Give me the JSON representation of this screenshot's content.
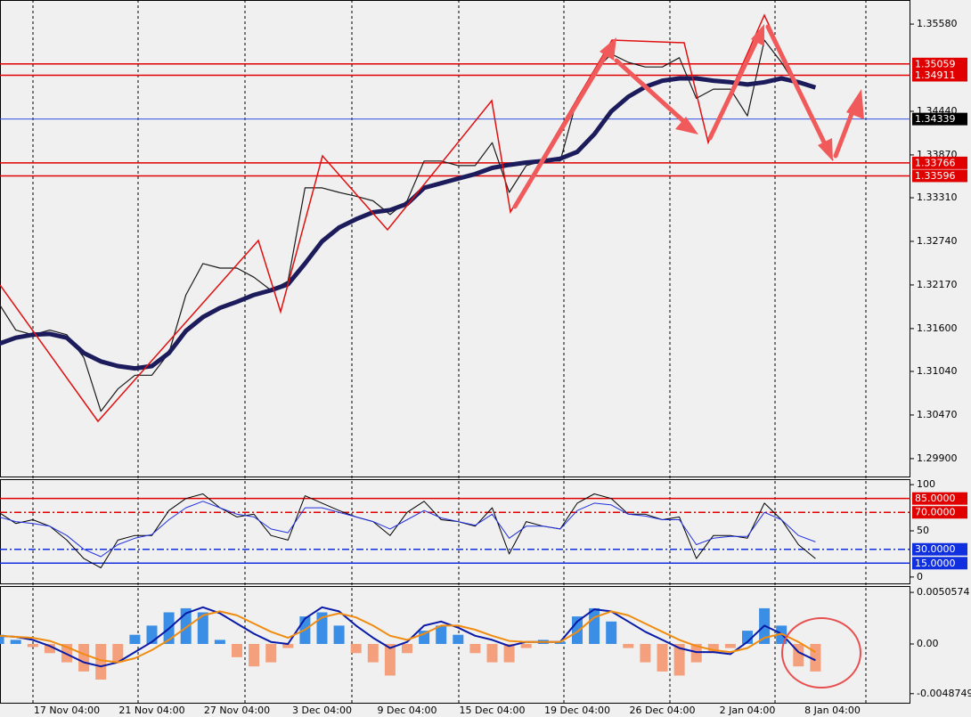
{
  "chart_data": [
    {
      "type": "line",
      "ylim": [
        1.29666,
        1.35895
      ],
      "yticks": [
        {
          "value": 1.3558,
          "label": "1.35580"
        },
        {
          "value": 1.3444,
          "label": "1.34440"
        },
        {
          "value": 1.3387,
          "label": "1.33870"
        },
        {
          "value": 1.3331,
          "label": "1.33310"
        },
        {
          "value": 1.3274,
          "label": "1.32740"
        },
        {
          "value": 1.3217,
          "label": "1.32170"
        },
        {
          "value": 1.316,
          "label": "1.31600"
        },
        {
          "value": 1.3104,
          "label": "1.31040"
        },
        {
          "value": 1.3047,
          "label": "1.30470"
        },
        {
          "value": 1.299,
          "label": "1.29900"
        }
      ],
      "levels": [
        {
          "value": 1.35059,
          "color": "#e00000",
          "label_color": "#e00000"
        },
        {
          "value": 1.34911,
          "color": "#e00000",
          "label_color": "#e00000"
        },
        {
          "value": 1.34339,
          "color": "#3050e0",
          "label_color": "#000000"
        },
        {
          "value": 1.33766,
          "color": "#e00000",
          "label_color": "#e00000"
        },
        {
          "value": 1.33596,
          "color": "#e00000",
          "label_color": "#e00000"
        }
      ],
      "series": [
        {
          "color": "#1a1a1a",
          "width": 1.2,
          "values": [
            1.3193,
            1.3158,
            1.3152,
            1.3158,
            1.3152,
            1.3122,
            1.3052,
            1.3081,
            1.3099,
            1.3099,
            1.3128,
            1.3204,
            1.3245,
            1.3239,
            1.3239,
            1.3227,
            1.321,
            1.3222,
            1.3344,
            1.3344,
            1.3338,
            1.3333,
            1.3327,
            1.3309,
            1.3327,
            1.3379,
            1.3379,
            1.3373,
            1.3373,
            1.3403,
            1.3338,
            1.3373,
            1.3379,
            1.3379,
            1.3461,
            1.3496,
            1.3519,
            1.3508,
            1.3502,
            1.3502,
            1.3514,
            1.3461,
            1.3473,
            1.3473,
            1.3438,
            1.3537,
            1.3508,
            1.3473,
            1.3426,
            null
          ]
        },
        {
          "color": "#1c1c5c",
          "width": 5,
          "values": [
            1.314,
            1.3148,
            1.3152,
            1.3153,
            1.3148,
            1.3128,
            1.3117,
            1.3111,
            1.3108,
            1.3111,
            1.3128,
            1.3157,
            1.3175,
            1.3187,
            1.3195,
            1.3204,
            1.321,
            1.3218,
            1.3245,
            1.3274,
            1.3292,
            1.3303,
            1.3312,
            1.3315,
            1.3323,
            1.3344,
            1.335,
            1.3356,
            1.3362,
            1.337,
            1.3374,
            1.3377,
            1.3379,
            1.3382,
            1.3391,
            1.3414,
            1.3444,
            1.3463,
            1.3476,
            1.3484,
            1.3487,
            1.3487,
            1.3484,
            1.3482,
            1.3479,
            1.3482,
            1.3487,
            1.3482,
            1.3475,
            null
          ]
        }
      ]
    },
    {
      "type": "line",
      "ylim": [
        -6.9,
        105.9
      ],
      "yticks": [
        100,
        50,
        0
      ],
      "levels": [
        {
          "value": 85,
          "label": "85.0000",
          "color": "#e00000",
          "label_color": "#e00000",
          "style": "solid"
        },
        {
          "value": 70,
          "label": "70.0000",
          "color": "#e00000",
          "label_color": "#e00000",
          "style": "dashdot"
        },
        {
          "value": 30,
          "label": "30.0000",
          "color": "#1030e0",
          "label_color": "#1030e0",
          "style": "dashdot"
        },
        {
          "value": 15,
          "label": "15.0000",
          "color": "#1030e0",
          "label_color": "#1030e0",
          "style": "solid"
        }
      ],
      "series": [
        {
          "color": "#000000",
          "width": 1,
          "values": [
            70,
            58,
            62,
            55,
            40,
            20,
            10,
            40,
            45,
            45,
            72,
            85,
            90,
            75,
            65,
            68,
            45,
            40,
            88,
            80,
            72,
            65,
            60,
            45,
            70,
            82,
            62,
            60,
            55,
            75,
            25,
            60,
            55,
            52,
            80,
            90,
            85,
            68,
            68,
            62,
            65,
            20,
            45,
            45,
            42,
            80,
            62,
            35,
            20,
            null
          ]
        },
        {
          "color": "#2030e0",
          "width": 1,
          "values": [
            65,
            60,
            58,
            55,
            45,
            30,
            22,
            35,
            42,
            46,
            62,
            75,
            82,
            75,
            68,
            65,
            52,
            48,
            75,
            75,
            70,
            65,
            60,
            52,
            62,
            72,
            64,
            60,
            56,
            68,
            42,
            55,
            55,
            52,
            72,
            80,
            78,
            68,
            66,
            62,
            62,
            35,
            42,
            44,
            44,
            70,
            62,
            45,
            38,
            null
          ]
        }
      ]
    },
    {
      "type": "macd",
      "ylim": [
        -0.005854,
        0.005677
      ],
      "yticks": [
        0.0050574,
        {
          "value": 0,
          "label": "0.00"
        },
        -0.0048749
      ],
      "categories": [
        null,
        null,
        null,
        null,
        "17 Nov 04:00",
        null,
        null,
        null,
        null,
        "21 Nov 04:00",
        null,
        null,
        null,
        null,
        "27 Nov 04:00",
        null,
        null,
        null,
        null,
        "3 Dec 04:00",
        null,
        null,
        null,
        null,
        "9 Dec 04:00",
        null,
        null,
        null,
        null,
        "15 Dec 04:00",
        null,
        null,
        null,
        null,
        "19 Dec 04:00",
        null,
        null,
        null,
        null,
        "26 Dec 04:00",
        null,
        null,
        null,
        null,
        "2 Jan 04:00",
        null,
        null,
        null,
        null,
        "8 Jan 04:00"
      ],
      "series": [
        {
          "type": "bar",
          "color": "#3a8ee6",
          "negative_color": "#f4a07c",
          "values": [
            0.0009,
            0.0004,
            -0.0003,
            -0.0009,
            -0.0018,
            -0.0027,
            -0.0035,
            -0.0018,
            0.0009,
            0.0018,
            0.0031,
            0.0035,
            0.0031,
            0.0004,
            -0.0013,
            -0.0022,
            -0.0018,
            -0.0004,
            0.0027,
            0.0031,
            0.0018,
            -0.0009,
            -0.0018,
            -0.0031,
            -0.0009,
            0.0013,
            0.0018,
            0.0009,
            -0.0009,
            -0.0018,
            -0.0018,
            -0.0004,
            0.0004,
            0.0002,
            0.0027,
            0.0035,
            0.0022,
            -0.0004,
            -0.0018,
            -0.0027,
            -0.0031,
            -0.0018,
            -0.0009,
            -0.0004,
            0.0013,
            0.0035,
            0.0018,
            -0.0022,
            -0.0027,
            null
          ]
        },
        {
          "type": "line",
          "color": "#0a1aa8",
          "width": 2,
          "values": [
            0.0008,
            0.0007,
            0.0004,
            -0.0002,
            -0.001,
            -0.0018,
            -0.0022,
            -0.0018,
            -0.0008,
            0.0002,
            0.0015,
            0.003,
            0.0036,
            0.003,
            0.002,
            0.001,
            0.0002,
            0,
            0.0025,
            0.0036,
            0.0032,
            0.0018,
            0.0006,
            -0.0004,
            0.0002,
            0.0018,
            0.0022,
            0.0016,
            0.0008,
            0.0004,
            -0.0002,
            0.0002,
            0.0002,
            0.0002,
            0.0022,
            0.0034,
            0.0032,
            0.0022,
            0.0012,
            0.0004,
            -0.0004,
            -0.0008,
            -0.0008,
            -0.001,
            0.0002,
            0.0018,
            0.001,
            -0.0008,
            -0.0016,
            null
          ]
        },
        {
          "type": "line",
          "color": "#f08c10",
          "width": 2,
          "values": [
            0.0008,
            0.0007,
            0.0006,
            0.0003,
            -0.0003,
            -0.001,
            -0.0016,
            -0.0018,
            -0.0014,
            -0.0006,
            0.0004,
            0.0016,
            0.0028,
            0.0032,
            0.0028,
            0.002,
            0.0012,
            0.0006,
            0.0014,
            0.0026,
            0.003,
            0.0026,
            0.0018,
            0.0008,
            0.0004,
            0.001,
            0.0018,
            0.0018,
            0.0014,
            0.0008,
            0.0003,
            0.0002,
            0.0002,
            0.0002,
            0.0012,
            0.0026,
            0.0032,
            0.0028,
            0.002,
            0.0012,
            0.0004,
            -0.0002,
            -0.0006,
            -0.0008,
            -0.0004,
            0.0006,
            0.001,
            0.0002,
            -0.0008,
            null
          ]
        }
      ]
    }
  ]
}
